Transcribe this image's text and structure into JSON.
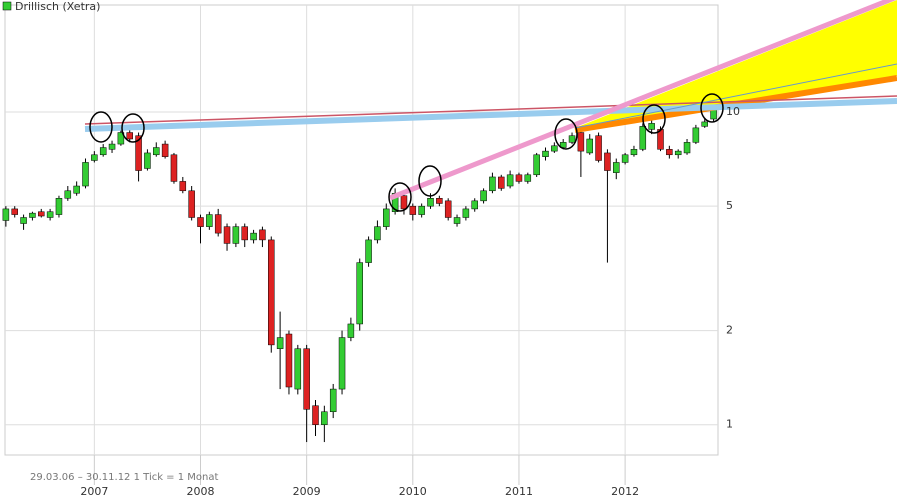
{
  "chart_data": {
    "type": "candlestick",
    "footer": "29.03.06 – 30.11.12   1 Tick = 1 Monat",
    "log_scale": true,
    "grid": true,
    "up_color": "#33cc33",
    "down_color": "#dd2222",
    "ylim": [
      0.8,
      22
    ],
    "yticks": [
      1,
      2,
      5,
      10
    ],
    "xlim": [
      -0.1,
      80.5
    ],
    "xticks": [
      {
        "value": 10,
        "label": "2007"
      },
      {
        "value": 22,
        "label": "2008"
      },
      {
        "value": 34,
        "label": "2009"
      },
      {
        "value": 46,
        "label": "2010"
      },
      {
        "value": 58,
        "label": "2011"
      },
      {
        "value": 70,
        "label": "2012"
      }
    ],
    "series": [
      {
        "name": "Drillisch (Xetra)",
        "color": "#33cc33",
        "open": [
          4.5,
          4.9,
          4.4,
          4.6,
          4.8,
          4.6,
          4.7,
          5.3,
          5.5,
          5.8,
          7.0,
          7.3,
          7.6,
          7.9,
          8.6,
          8.4,
          6.6,
          7.3,
          7.9,
          7.3,
          6.0,
          5.6,
          4.6,
          4.3,
          4.7,
          4.3,
          3.8,
          4.3,
          3.9,
          4.2,
          3.9,
          1.75,
          1.95,
          1.3,
          1.75,
          1.15,
          1.0,
          1.1,
          1.3,
          1.9,
          2.1,
          3.3,
          3.9,
          4.3,
          4.8,
          5.4,
          5.0,
          4.7,
          5.0,
          5.3,
          5.2,
          4.4,
          4.6,
          4.9,
          5.2,
          5.6,
          6.2,
          5.8,
          6.3,
          6.0,
          6.3,
          7.2,
          7.5,
          7.7,
          8.0,
          8.6,
          7.4,
          8.4,
          7.4,
          6.4,
          6.9,
          7.3,
          7.6,
          8.8,
          8.8,
          7.6,
          7.3,
          7.4,
          8.0,
          9.0,
          9.5
        ],
        "high": [
          5.0,
          5.0,
          4.7,
          4.8,
          4.9,
          4.9,
          5.4,
          5.8,
          6.0,
          7.1,
          7.5,
          7.9,
          8.1,
          8.9,
          8.8,
          8.6,
          7.6,
          8.0,
          8.1,
          7.4,
          6.2,
          5.8,
          4.7,
          4.8,
          4.9,
          4.4,
          4.4,
          4.4,
          4.2,
          4.3,
          4.0,
          2.3,
          2.0,
          1.8,
          1.8,
          1.2,
          1.15,
          1.35,
          2.0,
          2.2,
          3.4,
          4.0,
          4.5,
          5.1,
          5.7,
          5.6,
          5.1,
          5.1,
          5.5,
          5.4,
          5.3,
          4.7,
          5.0,
          5.3,
          5.7,
          6.4,
          6.3,
          6.5,
          6.4,
          6.4,
          7.4,
          7.7,
          8.0,
          8.2,
          8.6,
          8.8,
          8.5,
          8.6,
          7.6,
          7.1,
          7.4,
          7.8,
          9.2,
          9.5,
          9.0,
          7.8,
          7.6,
          8.2,
          9.1,
          9.5,
          10.4
        ],
        "low": [
          4.3,
          4.6,
          4.2,
          4.5,
          4.6,
          4.5,
          4.6,
          5.2,
          5.4,
          5.7,
          6.9,
          7.2,
          7.4,
          7.8,
          8.0,
          6.0,
          6.5,
          7.2,
          7.1,
          5.9,
          5.5,
          4.5,
          3.8,
          4.2,
          4.0,
          3.6,
          3.7,
          3.7,
          3.8,
          3.7,
          1.7,
          1.3,
          1.25,
          1.25,
          0.88,
          0.92,
          0.88,
          1.05,
          1.25,
          1.85,
          2.0,
          3.2,
          3.8,
          4.2,
          4.7,
          4.7,
          4.5,
          4.6,
          4.9,
          5.0,
          4.5,
          4.3,
          4.5,
          4.8,
          5.1,
          5.5,
          5.6,
          5.7,
          5.9,
          5.9,
          6.2,
          7.0,
          7.4,
          7.6,
          7.9,
          6.2,
          7.3,
          6.9,
          3.3,
          6.1,
          6.8,
          7.2,
          7.5,
          8.5,
          7.5,
          7.1,
          7.1,
          7.3,
          7.9,
          8.9,
          9.3
        ],
        "close": [
          4.9,
          4.7,
          4.6,
          4.75,
          4.65,
          4.8,
          5.3,
          5.6,
          5.8,
          6.9,
          7.3,
          7.7,
          7.9,
          8.6,
          8.2,
          6.5,
          7.4,
          7.7,
          7.2,
          6.0,
          5.6,
          4.6,
          4.3,
          4.7,
          4.1,
          3.8,
          4.3,
          3.9,
          4.1,
          3.9,
          1.8,
          1.9,
          1.32,
          1.75,
          1.12,
          1.0,
          1.1,
          1.3,
          1.9,
          2.1,
          3.3,
          3.9,
          4.3,
          4.9,
          5.5,
          4.9,
          4.7,
          5.0,
          5.3,
          5.1,
          4.6,
          4.6,
          4.9,
          5.2,
          5.6,
          6.2,
          5.7,
          6.3,
          6.0,
          6.3,
          7.3,
          7.5,
          7.8,
          8.0,
          8.4,
          7.5,
          8.2,
          7.0,
          6.5,
          6.9,
          7.3,
          7.6,
          9.0,
          9.2,
          7.6,
          7.3,
          7.5,
          8.0,
          8.9,
          9.3,
          10.2
        ]
      }
    ]
  }
}
